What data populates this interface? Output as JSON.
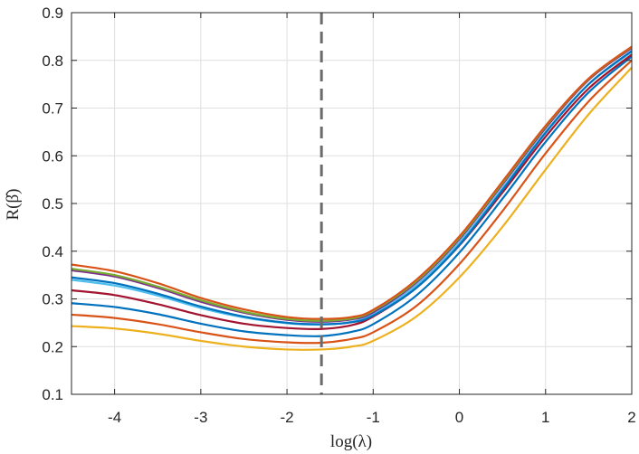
{
  "chart_data": {
    "type": "line",
    "xlabel": "log(λ)",
    "ylabel": "R(β̂)",
    "xlim": [
      -4.5,
      2
    ],
    "ylim": [
      0.1,
      0.9
    ],
    "xticks": [
      -4,
      -3,
      -2,
      -1,
      0,
      1,
      2
    ],
    "xtick_labels": [
      "-4",
      "-3",
      "-2",
      "-1",
      "0",
      "1",
      "2"
    ],
    "yticks": [
      0.1,
      0.2,
      0.3,
      0.4,
      0.5,
      0.6,
      0.7,
      0.8,
      0.9
    ],
    "ytick_labels": [
      "0.1",
      "0.2",
      "0.3",
      "0.4",
      "0.5",
      "0.6",
      "0.7",
      "0.8",
      "0.9"
    ],
    "grid": true,
    "legend": "none",
    "vertical_reference": {
      "x": -1.6,
      "style": "dashed",
      "color": "#6b6b6b"
    },
    "x": [
      -4.5,
      -4,
      -3.5,
      -3,
      -2.5,
      -2,
      -1.6,
      -1.25,
      -1,
      -0.5,
      0,
      0.5,
      1,
      1.5,
      2
    ],
    "series": [
      {
        "color": "#EDB120",
        "values": [
          0.243,
          0.238,
          0.227,
          0.212,
          0.2,
          0.194,
          0.194,
          0.2,
          0.212,
          0.263,
          0.345,
          0.451,
          0.571,
          0.687,
          0.785
        ]
      },
      {
        "color": "#D95319",
        "values": [
          0.267,
          0.26,
          0.247,
          0.23,
          0.216,
          0.209,
          0.208,
          0.216,
          0.23,
          0.285,
          0.373,
          0.484,
          0.605,
          0.714,
          0.8
        ]
      },
      {
        "color": "#0072BD",
        "values": [
          0.291,
          0.283,
          0.268,
          0.248,
          0.232,
          0.224,
          0.222,
          0.231,
          0.247,
          0.307,
          0.397,
          0.51,
          0.629,
          0.733,
          0.808
        ]
      },
      {
        "color": "#A2142F",
        "values": [
          0.318,
          0.308,
          0.289,
          0.266,
          0.248,
          0.239,
          0.237,
          0.245,
          0.263,
          0.323,
          0.412,
          0.523,
          0.64,
          0.741,
          0.812
        ]
      },
      {
        "color": "#4DBEEE",
        "values": [
          0.34,
          0.328,
          0.307,
          0.281,
          0.261,
          0.249,
          0.246,
          0.252,
          0.268,
          0.328,
          0.418,
          0.532,
          0.65,
          0.75,
          0.818
        ]
      },
      {
        "color": "#0072BD",
        "values": [
          0.345,
          0.333,
          0.311,
          0.284,
          0.263,
          0.25,
          0.247,
          0.251,
          0.265,
          0.323,
          0.413,
          0.528,
          0.648,
          0.75,
          0.82
        ]
      },
      {
        "color": "#7E2F8E",
        "values": [
          0.36,
          0.347,
          0.323,
          0.294,
          0.271,
          0.256,
          0.252,
          0.257,
          0.272,
          0.334,
          0.425,
          0.54,
          0.658,
          0.759,
          0.826
        ]
      },
      {
        "color": "#77AC30",
        "values": [
          0.363,
          0.35,
          0.326,
          0.297,
          0.273,
          0.258,
          0.254,
          0.259,
          0.275,
          0.337,
          0.428,
          0.543,
          0.661,
          0.761,
          0.828
        ]
      },
      {
        "color": "#D95319",
        "values": [
          0.372,
          0.358,
          0.333,
          0.302,
          0.278,
          0.262,
          0.258,
          0.262,
          0.277,
          0.34,
          0.431,
          0.546,
          0.663,
          0.762,
          0.829
        ]
      }
    ]
  }
}
